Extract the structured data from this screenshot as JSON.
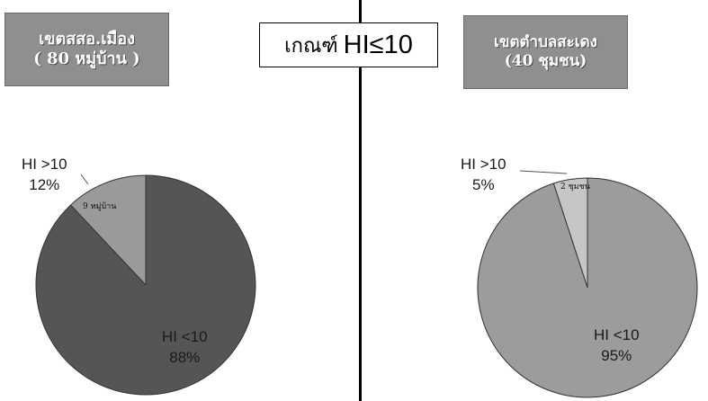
{
  "criteria": {
    "prefix": "เกณฑ์",
    "main": "HI≤10"
  },
  "chart_data": [
    {
      "type": "pie",
      "header_line1": "เขตสสอ.เมือง",
      "header_line2": "( 80 หมู่บ้าน )",
      "slices": [
        {
          "label": "HI <10",
          "percent_label": "88%",
          "value": 88,
          "color": "#555555"
        },
        {
          "label": "HI >10",
          "percent_label": "12%",
          "value": 12,
          "color": "#9a9a9a",
          "annotation": "9 หมู่บ้าน"
        }
      ]
    },
    {
      "type": "pie",
      "header_line1": "เขตตำบลสะเดง",
      "header_line2": "(40 ชุมชน)",
      "slices": [
        {
          "label": "HI <10",
          "percent_label": "95%",
          "value": 95,
          "color": "#9c9c9c"
        },
        {
          "label": "HI >10",
          "percent_label": "5%",
          "value": 5,
          "color": "#c6c6c6",
          "annotation": "2 ชุมชน"
        }
      ]
    }
  ]
}
